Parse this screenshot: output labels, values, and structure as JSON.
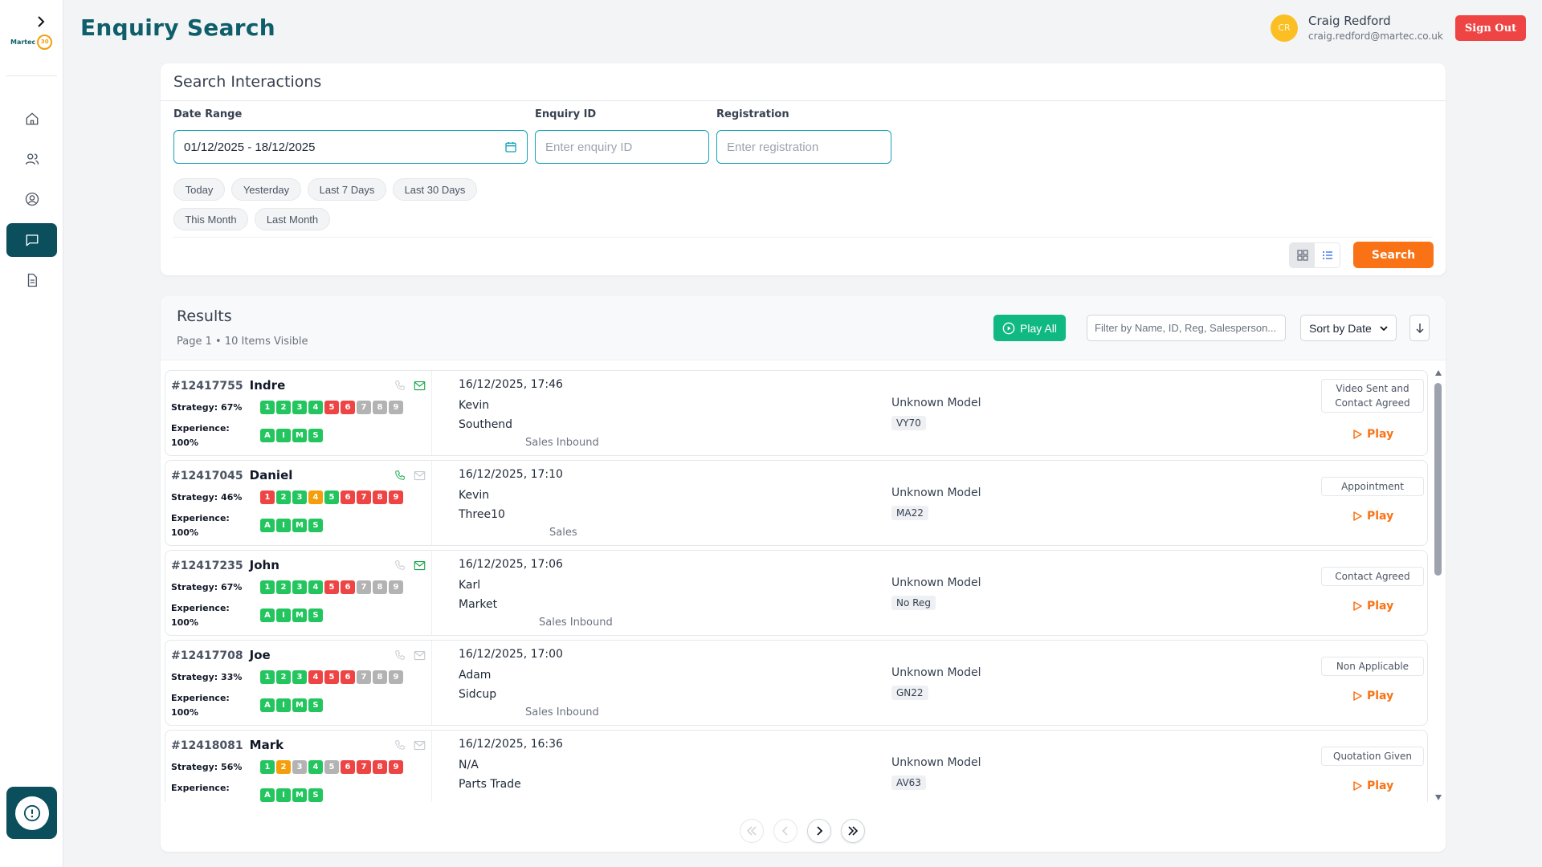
{
  "app": {
    "logo_text": "Martec",
    "logo_badge": "30"
  },
  "header": {
    "title": "Enquiry Search",
    "user": {
      "initials": "CR",
      "name": "Craig Redford",
      "email": "craig.redford@martec.co.uk"
    },
    "sign_out_label": "Sign Out"
  },
  "sidebar": {
    "items": [
      {
        "icon": "home-icon",
        "active": false
      },
      {
        "icon": "users-icon",
        "active": false
      },
      {
        "icon": "user-circle-icon",
        "active": false
      },
      {
        "icon": "message-icon",
        "active": true
      },
      {
        "icon": "document-icon",
        "active": false
      }
    ]
  },
  "search": {
    "title": "Search Interactions",
    "date_range_label": "Date Range",
    "date_range_value": "01/12/2025 - 18/12/2025",
    "enquiry_id_label": "Enquiry ID",
    "enquiry_id_placeholder": "Enter enquiry ID",
    "registration_label": "Registration",
    "registration_placeholder": "Enter registration",
    "quick_ranges": [
      "Today",
      "Yesterday",
      "Last 7 Days",
      "Last 30 Days",
      "This Month",
      "Last Month"
    ],
    "search_label": "Search"
  },
  "results": {
    "title": "Results",
    "subtitle": "Page 1 • 10 Items Visible",
    "play_all_label": "Play All",
    "filter_placeholder": "Filter by Name, ID, Reg, Salesperson...",
    "sort_value": "Sort by Date",
    "strategy_label": "Strategy:",
    "experience_label": "Experience:",
    "play_label": "Play",
    "rows": [
      {
        "id": "#12417755",
        "name": "Indre",
        "strategy": "67%",
        "experience": "100%",
        "steps": [
          "g",
          "g",
          "g",
          "g",
          "r",
          "r",
          "x",
          "x",
          "x"
        ],
        "phone_active": false,
        "email_active": true,
        "date": "16/12/2025, 17:46",
        "salesperson": "Kevin",
        "site": "Southend",
        "type": "Sales Inbound",
        "model": "Unknown Model",
        "reg": "VY70",
        "outcome": "Video Sent and Contact Agreed"
      },
      {
        "id": "#12417045",
        "name": "Daniel",
        "strategy": "46%",
        "experience": "100%",
        "steps": [
          "r",
          "g",
          "g",
          "o",
          "g",
          "r",
          "r",
          "r",
          "r"
        ],
        "phone_active": true,
        "email_active": false,
        "date": "16/12/2025, 17:10",
        "salesperson": "Kevin",
        "site": "Three10",
        "type": "Sales",
        "model": "Unknown Model",
        "reg": "MA22",
        "outcome": "Appointment"
      },
      {
        "id": "#12417235",
        "name": "John",
        "strategy": "67%",
        "experience": "100%",
        "steps": [
          "g",
          "g",
          "g",
          "g",
          "r",
          "r",
          "x",
          "x",
          "x"
        ],
        "phone_active": false,
        "email_active": true,
        "date": "16/12/2025, 17:06",
        "salesperson": "Karl",
        "site": "Market",
        "type": "Sales Inbound",
        "model": "Unknown Model",
        "reg": "No Reg",
        "outcome": "Contact Agreed"
      },
      {
        "id": "#12417708",
        "name": "Joe",
        "strategy": "33%",
        "experience": "100%",
        "steps": [
          "g",
          "g",
          "g",
          "r",
          "r",
          "r",
          "x",
          "x",
          "x"
        ],
        "phone_active": false,
        "email_active": false,
        "date": "16/12/2025, 17:00",
        "salesperson": "Adam",
        "site": "Sidcup",
        "type": "Sales Inbound",
        "model": "Unknown Model",
        "reg": "GN22",
        "outcome": "Non Applicable"
      },
      {
        "id": "#12418081",
        "name": "Mark",
        "strategy": "56%",
        "experience": "",
        "steps": [
          "g",
          "o",
          "x",
          "g",
          "x",
          "r",
          "r",
          "r",
          "r"
        ],
        "phone_active": false,
        "email_active": false,
        "date": "16/12/2025, 16:36",
        "salesperson": "N/A",
        "site": "Parts Trade",
        "type": "",
        "model": "Unknown Model",
        "reg": "AV63",
        "outcome": "Quotation Given"
      }
    ]
  },
  "colors": {
    "brand": "#0f5f6a",
    "sidebar_active": "#0b4f5c",
    "accent_orange": "#f97316",
    "sign_out": "#ef4444",
    "play_all": "#10b981",
    "step_green": "#22c55e",
    "step_red": "#ef4444",
    "step_orange": "#f59e0b",
    "step_grey": "#b3b3b3"
  }
}
